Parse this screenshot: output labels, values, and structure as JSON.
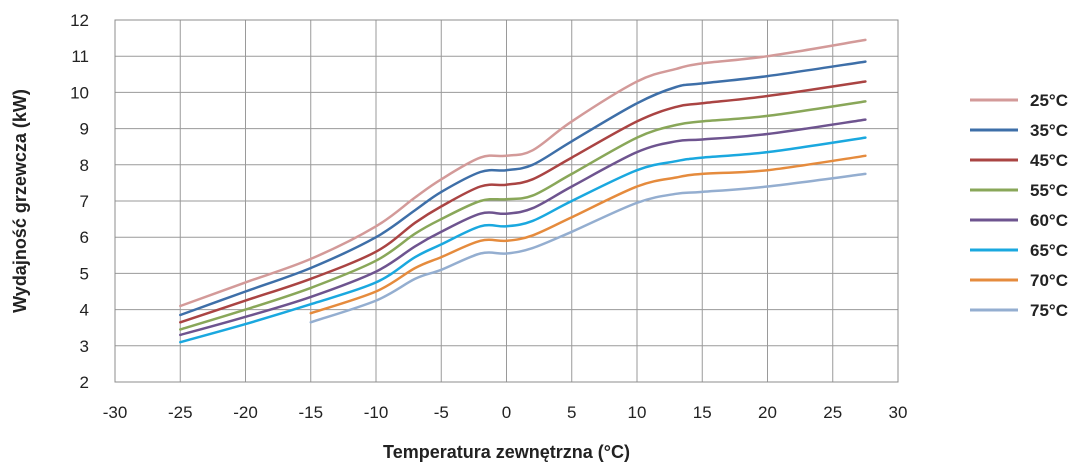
{
  "chart_data": {
    "type": "line",
    "xlabel": "Temperatura zewnętrzna (°C)",
    "ylabel": "Wydajność grzewcza (kW)",
    "xlim": [
      -30,
      30
    ],
    "ylim": [
      2,
      12
    ],
    "xticks": [
      -30,
      -25,
      -20,
      -15,
      -10,
      -5,
      0,
      5,
      10,
      15,
      20,
      25,
      30
    ],
    "yticks": [
      2,
      3,
      4,
      5,
      6,
      7,
      8,
      9,
      10,
      11,
      12
    ],
    "grid": true,
    "legend_position": "right",
    "series": [
      {
        "name": "25°C",
        "color": "#d39a99",
        "x": [
          -25,
          -20,
          -15,
          -10,
          -7,
          -5,
          -2,
          0,
          2,
          5,
          10,
          13,
          15,
          20,
          27.5
        ],
        "y": [
          4.1,
          4.75,
          5.4,
          6.3,
          7.1,
          7.6,
          8.2,
          8.25,
          8.4,
          9.2,
          10.3,
          10.65,
          10.8,
          11.0,
          11.45
        ]
      },
      {
        "name": "35°C",
        "color": "#3e6fa8",
        "x": [
          -25,
          -20,
          -15,
          -10,
          -7,
          -5,
          -2,
          0,
          2,
          5,
          10,
          13,
          15,
          20,
          27.5
        ],
        "y": [
          3.85,
          4.5,
          5.15,
          6.0,
          6.75,
          7.25,
          7.8,
          7.85,
          8.0,
          8.65,
          9.7,
          10.15,
          10.25,
          10.45,
          10.85
        ]
      },
      {
        "name": "45°C",
        "color": "#aa4443",
        "x": [
          -25,
          -20,
          -15,
          -10,
          -7,
          -5,
          -2,
          0,
          2,
          5,
          10,
          13,
          15,
          20,
          27.5
        ],
        "y": [
          3.65,
          4.25,
          4.85,
          5.6,
          6.4,
          6.85,
          7.4,
          7.45,
          7.6,
          8.2,
          9.2,
          9.6,
          9.7,
          9.9,
          10.3
        ]
      },
      {
        "name": "55°C",
        "color": "#89a759",
        "x": [
          -25,
          -20,
          -15,
          -10,
          -7,
          -5,
          -2,
          0,
          2,
          5,
          10,
          13,
          15,
          20,
          27.5
        ],
        "y": [
          3.45,
          4.0,
          4.6,
          5.35,
          6.1,
          6.5,
          7.0,
          7.05,
          7.15,
          7.75,
          8.75,
          9.1,
          9.2,
          9.35,
          9.75
        ]
      },
      {
        "name": "60°C",
        "color": "#6e548f",
        "x": [
          -25,
          -20,
          -15,
          -10,
          -7,
          -5,
          -2,
          0,
          2,
          5,
          10,
          13,
          15,
          20,
          27.5
        ],
        "y": [
          3.3,
          3.8,
          4.35,
          5.05,
          5.75,
          6.15,
          6.65,
          6.65,
          6.8,
          7.4,
          8.35,
          8.65,
          8.7,
          8.85,
          9.25
        ]
      },
      {
        "name": "65°C",
        "color": "#1aa8df",
        "x": [
          -25,
          -20,
          -15,
          -10,
          -7,
          -5,
          -2,
          0,
          2,
          5,
          10,
          13,
          15,
          20,
          27.5
        ],
        "y": [
          3.1,
          3.6,
          4.15,
          4.75,
          5.45,
          5.8,
          6.3,
          6.3,
          6.45,
          7.0,
          7.85,
          8.1,
          8.2,
          8.35,
          8.75
        ]
      },
      {
        "name": "70°C",
        "color": "#e58b3d",
        "x": [
          -15,
          -10,
          -7,
          -5,
          -2,
          0,
          2,
          5,
          10,
          13,
          15,
          20,
          27.5
        ],
        "y": [
          3.9,
          4.5,
          5.15,
          5.45,
          5.9,
          5.9,
          6.05,
          6.55,
          7.4,
          7.65,
          7.75,
          7.85,
          8.25
        ]
      },
      {
        "name": "75°C",
        "color": "#94aed0",
        "x": [
          -15,
          -10,
          -7,
          -5,
          -2,
          0,
          2,
          5,
          10,
          13,
          15,
          20,
          27.5
        ],
        "y": [
          3.65,
          4.25,
          4.85,
          5.1,
          5.55,
          5.55,
          5.7,
          6.15,
          6.95,
          7.2,
          7.25,
          7.4,
          7.75
        ]
      }
    ]
  }
}
